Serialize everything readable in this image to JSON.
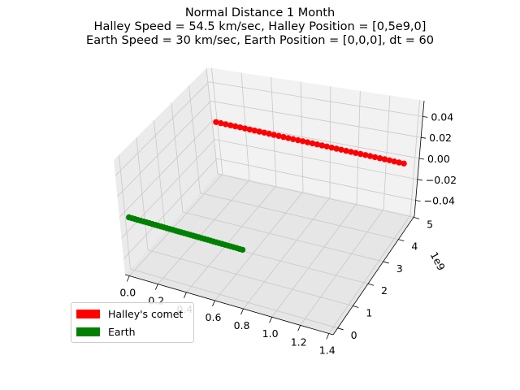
{
  "chart_data": {
    "type": "scatter",
    "projection": "3d",
    "title_lines": [
      "Normal Distance 1 Month",
      "",
      "Halley Speed = 54.5 km/sec, Halley Position = [0,5e9,0]",
      "Earth Speed = 30 km/sec, Earth Position = [0,0,0], dt = 60"
    ],
    "x_ticks": [
      "0.0",
      "0.2",
      "0.4",
      "0.6",
      "0.8",
      "1.0",
      "1.2",
      "1.4"
    ],
    "y_ticks": [
      "0",
      "1",
      "2",
      "3",
      "4",
      "5"
    ],
    "y_offset_label": "1e9",
    "z_ticks": [
      "0.04",
      "0.02",
      "0.00",
      "−0.02",
      "−0.04"
    ],
    "grid": true,
    "legend_position": "lower-left",
    "series": [
      {
        "name": "Halley's comet",
        "color": "#ff0000",
        "x_range": [
          0.0,
          140000000000.0
        ],
        "y": 5000000000.0,
        "z": 0.0
      },
      {
        "name": "Earth",
        "color": "#008000",
        "x_range": [
          0.0,
          80000000000.0
        ],
        "y": 0.0,
        "z": 0.0
      }
    ]
  }
}
